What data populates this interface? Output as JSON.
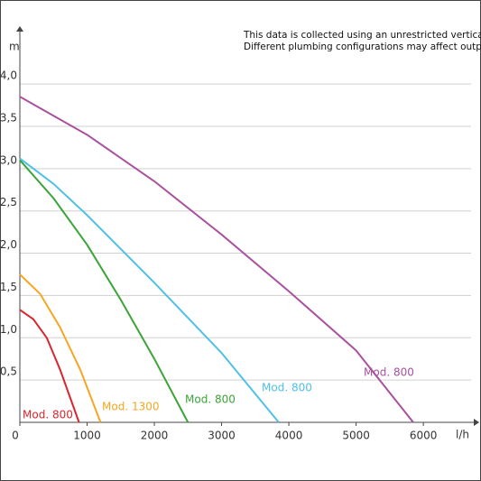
{
  "chart_data": {
    "type": "line",
    "note": [
      "This data is collected using an unrestricted vertical pipe.",
      "Different plumbing configurations may affect output."
    ],
    "y_label": "m",
    "x_label": "l/h",
    "xlim": [
      0,
      6750
    ],
    "ylim": [
      0,
      4.62
    ],
    "xticks": [
      0,
      1000,
      2000,
      3000,
      4000,
      5000,
      6000
    ],
    "yticks": [
      {
        "value": 0.5,
        "label": "0,5"
      },
      {
        "value": 1.0,
        "label": "1,0"
      },
      {
        "value": 1.5,
        "label": "1,5"
      },
      {
        "value": 2.0,
        "label": "2,0"
      },
      {
        "value": 2.5,
        "label": "2,5"
      },
      {
        "value": 3.0,
        "label": "3,0"
      },
      {
        "value": 3.5,
        "label": "3,5"
      },
      {
        "value": 4.0,
        "label": "4,0"
      }
    ],
    "grid": true,
    "series": [
      {
        "name": "Mod. 800",
        "color": "#d9262e",
        "x": [
          0,
          200,
          400,
          600,
          880
        ],
        "values": [
          1.33,
          1.22,
          1.0,
          0.62,
          0
        ]
      },
      {
        "name": "Mod. 1300",
        "color": "#f5a623",
        "x": [
          0,
          300,
          600,
          900,
          1200
        ],
        "values": [
          1.75,
          1.52,
          1.12,
          0.62,
          0
        ]
      },
      {
        "name": "Mod. 800",
        "color": "#3aa537",
        "x": [
          0,
          500,
          1000,
          1500,
          2000,
          2500
        ],
        "values": [
          3.1,
          2.65,
          2.1,
          1.45,
          0.75,
          0
        ]
      },
      {
        "name": "Mod. 800",
        "color": "#4fc0e8",
        "x": [
          0,
          500,
          1000,
          2000,
          3000,
          3850
        ],
        "values": [
          3.12,
          2.82,
          2.45,
          1.65,
          0.82,
          0
        ]
      },
      {
        "name": "Mod. 800",
        "color": "#a9519e",
        "x": [
          0,
          1000,
          2000,
          3000,
          4000,
          5000,
          5850
        ],
        "values": [
          3.85,
          3.4,
          2.85,
          2.22,
          1.55,
          0.85,
          0
        ]
      }
    ]
  }
}
